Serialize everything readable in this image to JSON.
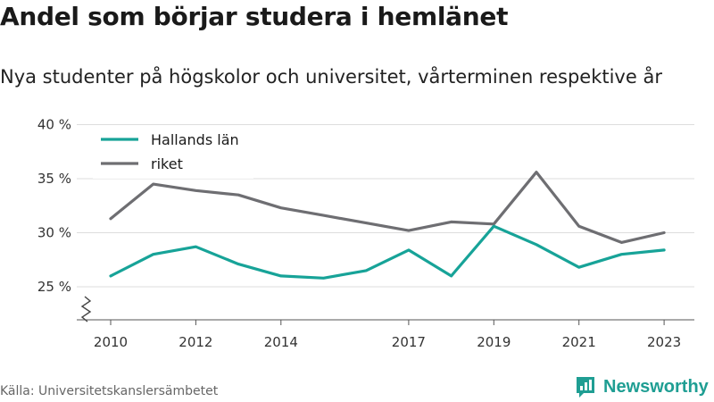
{
  "header": {
    "title": "Andel som börjar studera i hemlänet",
    "subtitle": "Nya studenter på högskolor och universitet, vårterminen respektive år"
  },
  "footer": {
    "source": "Källa: Universitetskanslersämbetet",
    "brand": "Newsworthy",
    "brand_icon": "newsworthy-logo-icon"
  },
  "colors": {
    "hallands": "#17a398",
    "riket": "#6e6e72",
    "grid": "#dddddd",
    "brand": "#1f9e93"
  },
  "chart_data": {
    "type": "line",
    "title": "Andel som börjar studera i hemlänet",
    "subtitle": "Nya studenter på högskolor och universitet, vårterminen respektive år",
    "x": [
      2010,
      2011,
      2012,
      2013,
      2014,
      2015,
      2016,
      2017,
      2018,
      2019,
      2020,
      2021,
      2022,
      2023
    ],
    "x_ticks": [
      2010,
      2012,
      2014,
      2017,
      2019,
      2021,
      2023
    ],
    "y_ticks": [
      25,
      30,
      35,
      40
    ],
    "y_tick_labels": [
      "25 %",
      "30 %",
      "35 %",
      "40 %"
    ],
    "ylim": [
      22.5,
      40
    ],
    "y_axis_break": true,
    "grid": true,
    "legend": "top-left",
    "series": [
      {
        "name": "Hallands län",
        "color": "#17a398",
        "values": [
          26.0,
          28.0,
          28.7,
          27.1,
          26.0,
          25.8,
          26.5,
          28.4,
          26.0,
          30.6,
          28.9,
          26.8,
          28.0,
          28.4
        ]
      },
      {
        "name": "riket",
        "color": "#6e6e72",
        "values": [
          31.3,
          34.5,
          33.9,
          33.5,
          32.3,
          31.6,
          30.9,
          30.2,
          31.0,
          30.8,
          35.6,
          30.6,
          29.1,
          30.0
        ]
      }
    ]
  }
}
